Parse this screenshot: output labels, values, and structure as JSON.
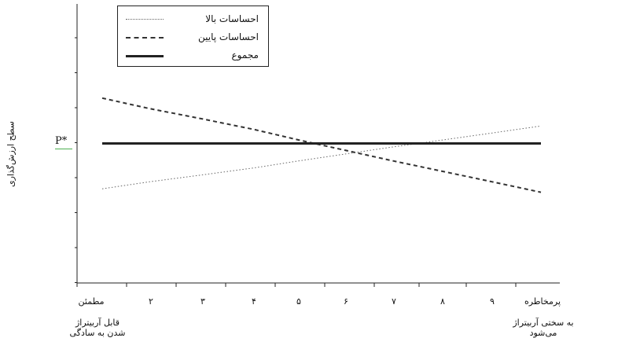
{
  "chart_data": {
    "type": "line",
    "ylabel": "سطح ارزش‌گذاری",
    "y_marker": "P*",
    "categories": [
      "مطمئن",
      "۲",
      "۳",
      "۴",
      "۵",
      "۶",
      "۷",
      "۸",
      "۹",
      "پرمخاطره"
    ],
    "x_end_notes": {
      "left": "قابل آربیتراژ شدن به سادگی",
      "right": "به سختی آربیتراژ می‌شود"
    },
    "series": [
      {
        "name": "احساسات بالا",
        "style": "dotted",
        "values": [
          0.35,
          0.45,
          0.55,
          0.65,
          0.75,
          0.85,
          0.95,
          1.05,
          1.15,
          1.25
        ],
        "color": "#666666"
      },
      {
        "name": "احساسات پایین",
        "style": "dashed",
        "values": [
          1.65,
          1.5,
          1.35,
          1.2,
          1.05,
          0.9,
          0.75,
          0.6,
          0.45,
          0.3
        ],
        "color": "#333333"
      },
      {
        "name": "مجموع",
        "style": "solid",
        "values": [
          1.0,
          1.0,
          1.0,
          1.0,
          1.0,
          1.0,
          1.0,
          1.0,
          1.0,
          1.0
        ],
        "color": "#222222"
      }
    ],
    "ylim": [
      -1.0,
      3.0
    ],
    "grid": false,
    "legend_position": "top-left"
  }
}
